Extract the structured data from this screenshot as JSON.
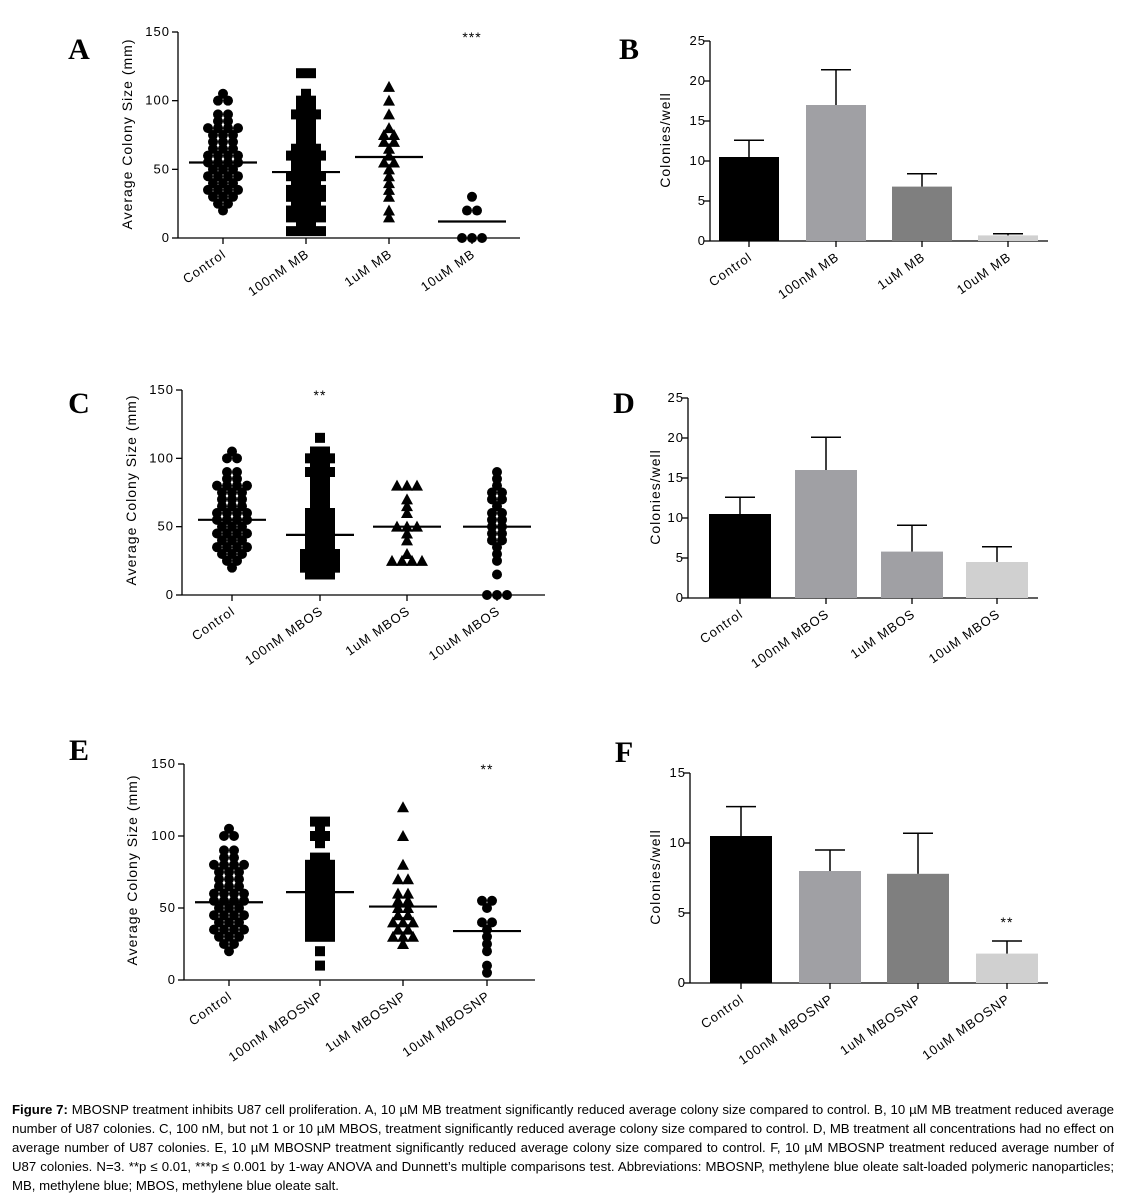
{
  "chart_data": [
    {
      "panel": "A",
      "type": "scatter",
      "ylabel": "Average Colony Size (mm)",
      "ylim": [
        0,
        150
      ],
      "yticks": [
        0,
        50,
        100,
        150
      ],
      "categories": [
        "Control",
        "100nM MB",
        "1uM MB",
        "10uM MB"
      ],
      "markers": [
        "circle",
        "square",
        "triangle",
        "circle"
      ],
      "points": [
        [
          20,
          25,
          25,
          30,
          30,
          30,
          35,
          35,
          35,
          35,
          40,
          40,
          40,
          45,
          45,
          45,
          45,
          50,
          50,
          50,
          55,
          55,
          55,
          55,
          60,
          60,
          60,
          60,
          65,
          65,
          65,
          70,
          70,
          70,
          75,
          75,
          75,
          80,
          80,
          80,
          80,
          85,
          85,
          90,
          90,
          100,
          100,
          105
        ],
        [
          5,
          5,
          5,
          5,
          10,
          10,
          15,
          15,
          15,
          15,
          20,
          20,
          20,
          20,
          25,
          25,
          25,
          30,
          30,
          30,
          30,
          35,
          35,
          35,
          35,
          40,
          40,
          40,
          45,
          45,
          45,
          45,
          50,
          50,
          50,
          55,
          55,
          55,
          60,
          60,
          60,
          60,
          65,
          65,
          65,
          70,
          70,
          75,
          75,
          80,
          80,
          85,
          85,
          90,
          90,
          90,
          95,
          95,
          100,
          100,
          105,
          120,
          120
        ],
        [
          15,
          20,
          30,
          35,
          40,
          45,
          50,
          55,
          55,
          60,
          65,
          70,
          70,
          75,
          75,
          80,
          90,
          100,
          110
        ],
        [
          0,
          0,
          0,
          20,
          20,
          30
        ]
      ],
      "means": [
        55,
        48,
        59,
        12
      ],
      "annotations": [
        {
          "text": "***",
          "category": "10uM MB"
        }
      ]
    },
    {
      "panel": "B",
      "type": "bar",
      "ylabel": "Colonies/well",
      "ylim": [
        0,
        25
      ],
      "yticks": [
        0,
        5,
        10,
        15,
        20,
        25
      ],
      "categories": [
        "Control",
        "100nM MB",
        "1uM MB",
        "10uM MB"
      ],
      "values": [
        10.5,
        17.0,
        6.8,
        0.7
      ],
      "errors": [
        2.1,
        4.4,
        1.6,
        0.2
      ],
      "colors": [
        "#000000",
        "#a0a0a4",
        "#7f7f7f",
        "#d0d0d0"
      ],
      "annotations": []
    },
    {
      "panel": "C",
      "type": "scatter",
      "ylabel": "Average Colony Size (mm)",
      "ylim": [
        0,
        150
      ],
      "yticks": [
        0,
        50,
        100,
        150
      ],
      "categories": [
        "Control",
        "100nM MBOS",
        "1uM MBOS",
        "10uM MBOS"
      ],
      "markers": [
        "circle",
        "square",
        "triangle",
        "circle"
      ],
      "points": [
        [
          20,
          25,
          25,
          30,
          30,
          30,
          35,
          35,
          35,
          35,
          40,
          40,
          40,
          45,
          45,
          45,
          45,
          50,
          50,
          50,
          55,
          55,
          55,
          55,
          60,
          60,
          60,
          60,
          65,
          65,
          65,
          70,
          70,
          70,
          75,
          75,
          75,
          80,
          80,
          80,
          80,
          85,
          85,
          90,
          90,
          100,
          100,
          105
        ],
        [
          15,
          15,
          15,
          20,
          20,
          20,
          20,
          25,
          25,
          25,
          25,
          30,
          30,
          30,
          30,
          35,
          35,
          35,
          40,
          40,
          40,
          45,
          45,
          45,
          50,
          50,
          50,
          55,
          55,
          55,
          60,
          60,
          60,
          65,
          65,
          70,
          70,
          75,
          75,
          80,
          80,
          85,
          85,
          90,
          90,
          90,
          95,
          95,
          100,
          100,
          100,
          105,
          105,
          115
        ],
        [
          25,
          25,
          25,
          25,
          30,
          40,
          45,
          50,
          50,
          50,
          60,
          65,
          70,
          80,
          80,
          80
        ],
        [
          0,
          0,
          0,
          15,
          25,
          30,
          35,
          40,
          40,
          45,
          45,
          50,
          50,
          55,
          55,
          60,
          60,
          65,
          70,
          70,
          75,
          75,
          80,
          85,
          90
        ]
      ],
      "means": [
        55,
        44,
        50,
        50
      ],
      "annotations": [
        {
          "text": "**",
          "category": "100nM MBOS"
        }
      ]
    },
    {
      "panel": "D",
      "type": "bar",
      "ylabel": "Colonies/well",
      "ylim": [
        0,
        25
      ],
      "yticks": [
        0,
        5,
        10,
        15,
        20,
        25
      ],
      "categories": [
        "Control",
        "100nM MBOS",
        "1uM MBOS",
        "10uM MBOS"
      ],
      "values": [
        10.5,
        16.0,
        5.8,
        4.5
      ],
      "errors": [
        2.1,
        4.1,
        3.3,
        1.9
      ],
      "colors": [
        "#000000",
        "#a0a0a4",
        "#a0a0a4",
        "#d0d0d0"
      ],
      "annotations": []
    },
    {
      "panel": "E",
      "type": "scatter",
      "ylabel": "Average Colony Size (mm)",
      "ylim": [
        0,
        150
      ],
      "yticks": [
        0,
        50,
        100,
        150
      ],
      "categories": [
        "Control",
        "100nM MBOSNP",
        "1uM MBOSNP",
        "10uM MBOSNP"
      ],
      "markers": [
        "circle",
        "square",
        "triangle",
        "circle"
      ],
      "points": [
        [
          20,
          25,
          25,
          30,
          30,
          30,
          35,
          35,
          35,
          35,
          40,
          40,
          40,
          45,
          45,
          45,
          45,
          50,
          50,
          50,
          55,
          55,
          55,
          55,
          60,
          60,
          60,
          60,
          65,
          65,
          65,
          70,
          70,
          70,
          75,
          75,
          75,
          80,
          80,
          80,
          80,
          85,
          85,
          90,
          90,
          100,
          100,
          105
        ],
        [
          10,
          20,
          30,
          30,
          30,
          35,
          35,
          35,
          40,
          40,
          40,
          45,
          45,
          45,
          50,
          50,
          50,
          55,
          55,
          55,
          60,
          60,
          60,
          65,
          65,
          65,
          70,
          70,
          70,
          75,
          75,
          75,
          80,
          80,
          80,
          85,
          85,
          95,
          100,
          100,
          105,
          110,
          110
        ],
        [
          25,
          30,
          30,
          30,
          35,
          35,
          40,
          40,
          40,
          45,
          45,
          50,
          50,
          55,
          55,
          60,
          60,
          70,
          70,
          80,
          100,
          120
        ],
        [
          5,
          10,
          20,
          25,
          30,
          35,
          40,
          40,
          50,
          55,
          55
        ]
      ],
      "means": [
        54,
        61,
        51,
        34
      ],
      "annotations": [
        {
          "text": "**",
          "category": "10uM MBOSNP"
        }
      ]
    },
    {
      "panel": "F",
      "type": "bar",
      "ylabel": "Colonies/well",
      "ylim": [
        0,
        15
      ],
      "yticks": [
        0,
        5,
        10,
        15
      ],
      "categories": [
        "Control",
        "100nM MBOSNP",
        "1uM MBOSNP",
        "10uM MBOSNP"
      ],
      "values": [
        10.5,
        8.0,
        7.8,
        2.1
      ],
      "errors": [
        2.1,
        1.5,
        2.9,
        0.9
      ],
      "colors": [
        "#000000",
        "#a0a0a4",
        "#7f7f7f",
        "#d0d0d0"
      ],
      "annotations": [
        {
          "text": "**",
          "category": "10uM MBOSNP"
        }
      ]
    }
  ],
  "caption": {
    "label": "Figure 7:",
    "text": " MBOSNP treatment inhibits U87 cell proliferation. A, 10 µM MB treatment significantly reduced average colony size compared to control. B, 10 µM MB treatment reduced average number of U87 colonies. C, 100 nM, but not 1 or 10 µM MBOS, treatment significantly reduced average colony size compared to control. D, MB treatment all concentrations had no effect on average number of U87 colonies. E, 10 µM MBOSNP treatment significantly reduced average colony size compared to control. F, 10 µM MBOSNP treatment reduced average number of U87 colonies. N=3. **p ≤ 0.01, ***p ≤ 0.001 by 1-way ANOVA and Dunnett’s multiple comparisons test. Abbreviations: MBOSNP, methylene blue oleate salt-loaded polymeric nanoparticles; MB, methylene blue; MBOS, methylene blue oleate salt."
  }
}
